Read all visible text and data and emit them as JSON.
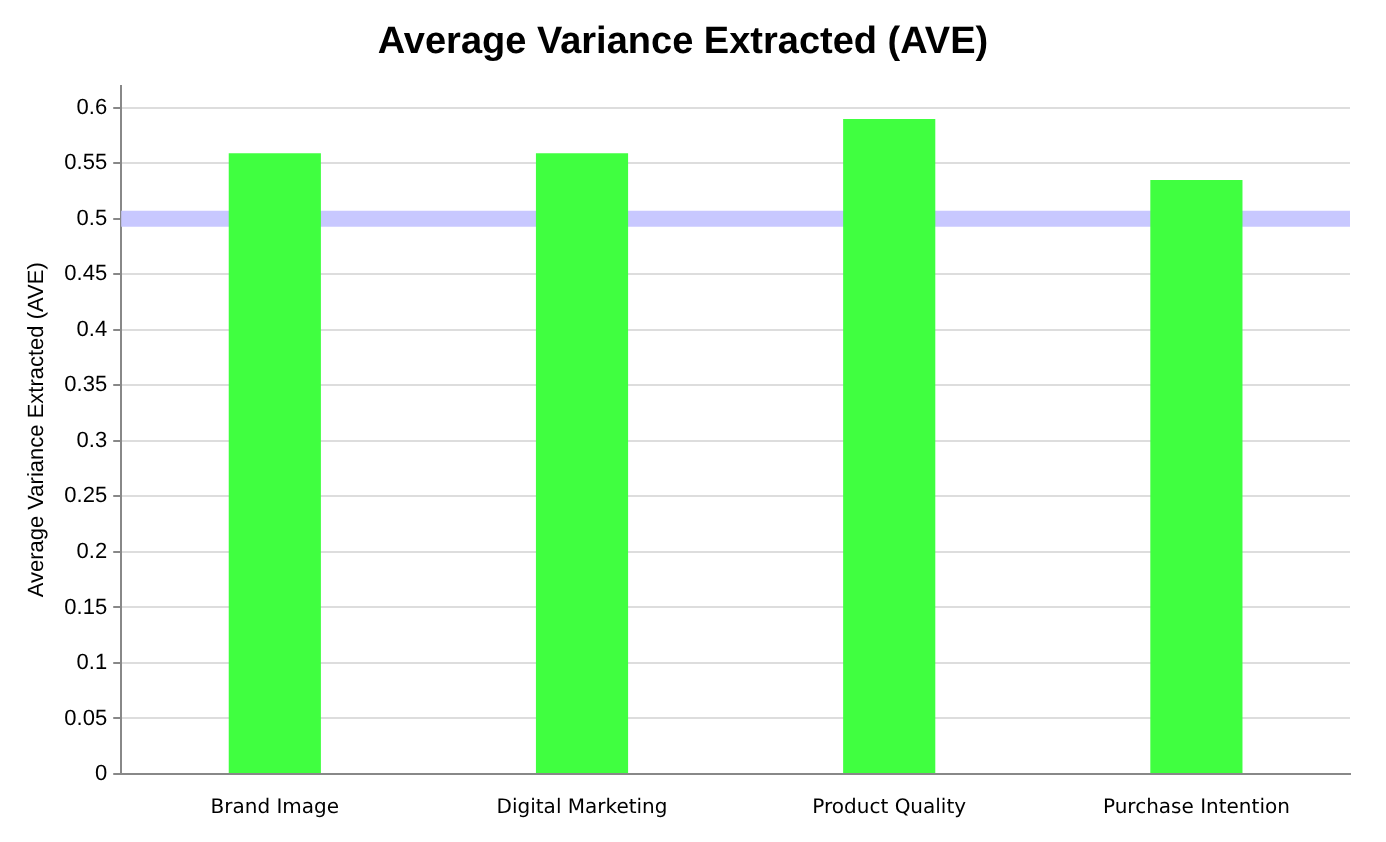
{
  "chart_data": {
    "type": "bar",
    "title": "Average Variance Extracted (AVE)",
    "ylabel": "Average Variance Extracted (AVE)",
    "categories": [
      "Brand Image",
      "Digital Marketing",
      "Product Quality",
      "Purchase Intention"
    ],
    "values": [
      0.559,
      0.559,
      0.59,
      0.535
    ],
    "color": "#40ff40",
    "ylim": [
      0,
      0.62
    ],
    "yticks": [
      0,
      0.05,
      0.1,
      0.15,
      0.2,
      0.25,
      0.3,
      0.35,
      0.4,
      0.45,
      0.5,
      0.55,
      0.6
    ],
    "ref_lines": [
      {
        "axis": "y",
        "value": 0.5,
        "color": "#c8c8ff"
      }
    ],
    "grid": "y",
    "legend": false
  }
}
